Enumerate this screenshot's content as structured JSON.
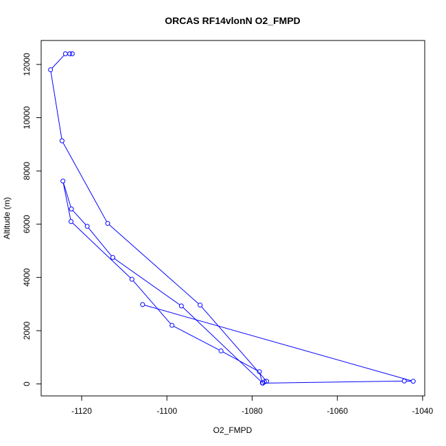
{
  "chart_data": {
    "type": "line",
    "title": "ORCAS RF14vlonN O2_FMPD",
    "xlabel": "O2_FMPD",
    "ylabel": "Altitude (m)",
    "xlim": [
      -1129.5,
      -1039.5
    ],
    "ylim": [
      -450,
      12900
    ],
    "xticks": [
      -1120,
      -1100,
      -1080,
      -1060,
      -1040
    ],
    "yticks": [
      0,
      2000,
      4000,
      6000,
      8000,
      10000,
      12000
    ],
    "xtick_labels": [
      "-1120",
      "-1100",
      "-1080",
      "-1060",
      "-1040"
    ],
    "ytick_labels": [
      "0",
      "2000",
      "4000",
      "6000",
      "8000",
      "10000",
      "12000"
    ],
    "grid": false,
    "series": [
      {
        "color": "#0000ff",
        "marker": "open-circle",
        "x": [
          -1122.2,
          -1122.8,
          -1123.8,
          -1127.3,
          -1124.6,
          -1113.9,
          -1092.2,
          -1076.6,
          -1077.1,
          -1077.6,
          -1078.3,
          -1087.3,
          -1098.8,
          -1108.2,
          -1122.5,
          -1124.4,
          -1122.4,
          -1118.7,
          -1112.7,
          -1096.6,
          -1077.5,
          -1044.3,
          -1042.2,
          -1105.7
        ],
        "y": [
          12400,
          12400,
          12400,
          11800,
          9130,
          6030,
          2960,
          100,
          80,
          40,
          460,
          1240,
          2200,
          3930,
          6100,
          7620,
          6570,
          5920,
          4750,
          2930,
          30,
          110,
          100,
          2980
        ]
      }
    ]
  }
}
